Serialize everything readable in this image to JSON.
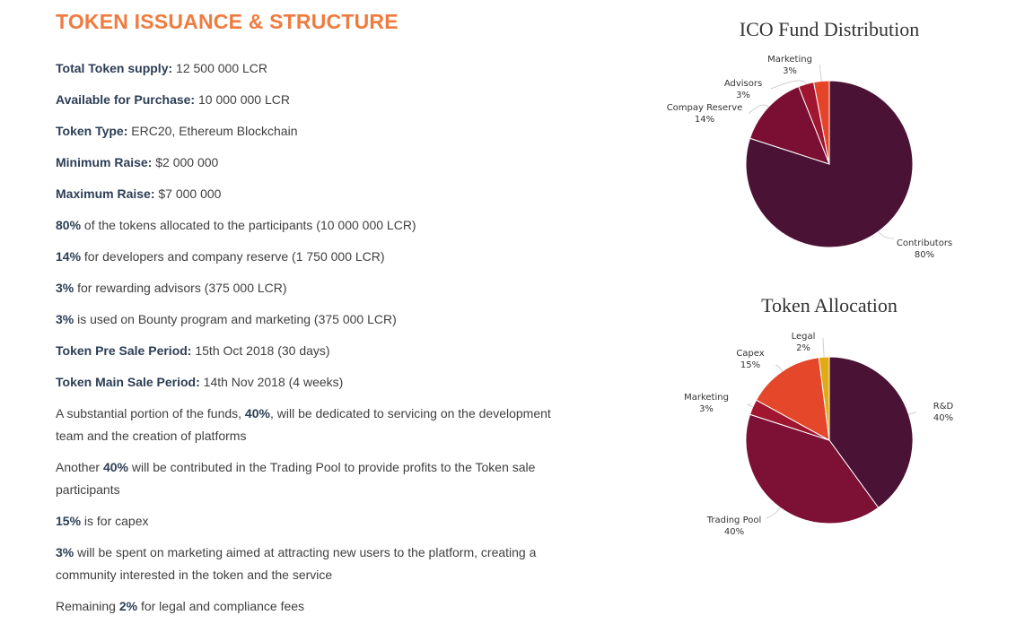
{
  "section": {
    "title": "TOKEN ISSUANCE & STRUCTURE"
  },
  "facts": [
    {
      "label": "Total Token supply:",
      "value": " 12 500 000 LCR"
    },
    {
      "label": "Available for Purchase:",
      "value": " 10 000 000 LCR"
    },
    {
      "label": "Token Type:",
      "value": " ERC20, Ethereum Blockchain"
    },
    {
      "label": "Minimum Raise:",
      "value": " $2 000 000"
    },
    {
      "label": "Maximum Raise:",
      "value": " $7 000 000"
    },
    {
      "label": "80%",
      "value": " of the tokens allocated to the participants (10 000 000 LCR)"
    },
    {
      "label": "14%",
      "value": " for developers and company reserve (1 750 000 LCR)"
    },
    {
      "label": "3%",
      "value": " for rewarding advisors (375 000 LCR)"
    },
    {
      "label": "3%",
      "value": " is used on Bounty program and marketing (375 000 LCR)"
    },
    {
      "label": "Token Pre Sale Period:",
      "value": " 15th Oct 2018 (30 days)"
    },
    {
      "label": "Token Main Sale Period:",
      "value": " 14th Nov 2018 (4 weeks)"
    }
  ],
  "paragraphs": [
    {
      "before": "A substantial portion of the funds, ",
      "bold": "40%",
      "after": ", will be dedicated to servicing on the development team and the creation of platforms"
    },
    {
      "before": "Another ",
      "bold": "40%",
      "after": " will be contributed in the Trading Pool to provide profits to the Token sale participants"
    },
    {
      "before": "",
      "bold": "15%",
      "after": " is for capex"
    },
    {
      "before": "",
      "bold": "3%",
      "after": " will be spent on marketing aimed at attracting new users to the platform, creating a community interested in the token and the service"
    },
    {
      "before": "Remaining ",
      "bold": "2%",
      "after": " for legal and compliance fees"
    }
  ],
  "chart_data": [
    {
      "type": "pie",
      "title": "ICO Fund Distribution",
      "slices": [
        {
          "name": "Contributors",
          "label": "80%",
          "value": 80,
          "color": "#4a1234"
        },
        {
          "name": "Compay Reserve",
          "label": "14%",
          "value": 14,
          "color": "#7a0f33"
        },
        {
          "name": "Advisors",
          "label": "3%",
          "value": 3,
          "color": "#a0152f"
        },
        {
          "name": "Marketing",
          "label": "3%",
          "value": 3,
          "color": "#e4442a"
        }
      ]
    },
    {
      "type": "pie",
      "title": "Token Allocation",
      "slices": [
        {
          "name": "R&D",
          "label": "40%",
          "value": 40,
          "color": "#4a1234"
        },
        {
          "name": "Trading Pool",
          "label": "40%",
          "value": 40,
          "color": "#7d1035"
        },
        {
          "name": "Marketing",
          "label": "3%",
          "value": 3,
          "color": "#a0152f"
        },
        {
          "name": "Capex",
          "label": "15%",
          "value": 15,
          "color": "#e4472a"
        },
        {
          "name": "Legal",
          "label": "2%",
          "value": 2,
          "color": "#e0ab12"
        }
      ]
    }
  ]
}
